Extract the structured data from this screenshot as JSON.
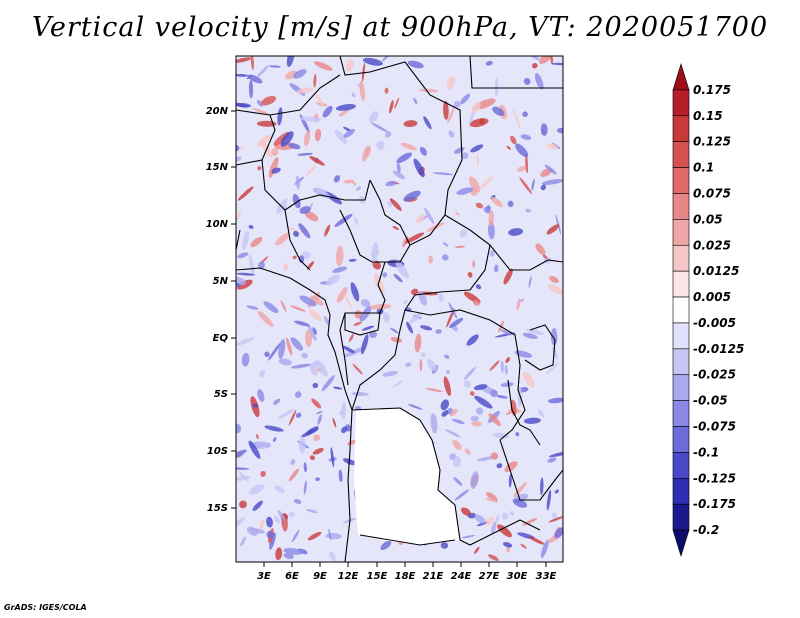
{
  "title": "Vertical velocity [m/s] at 900hPa, VT: 2020051700",
  "credit": "GrADS: IGES/COLA",
  "map": {
    "lat_labels": [
      "20N",
      "15N",
      "10N",
      "5N",
      "EQ",
      "5S",
      "10S",
      "15S"
    ],
    "lon_labels": [
      "3E",
      "6E",
      "9E",
      "12E",
      "15E",
      "18E",
      "21E",
      "24E",
      "27E",
      "30E",
      "33E"
    ]
  },
  "colorbar": {
    "labels": [
      "0.175",
      "0.15",
      "0.125",
      "0.1",
      "0.075",
      "0.05",
      "0.025",
      "0.0125",
      "0.005",
      "-0.005",
      "-0.0125",
      "-0.025",
      "-0.05",
      "-0.075",
      "-0.1",
      "-0.125",
      "-0.175",
      "-0.2"
    ],
    "colors": [
      "#9e0f1a",
      "#b51d2a",
      "#c83a3a",
      "#d55252",
      "#e06a6a",
      "#e88787",
      "#f0a6a6",
      "#f7c7c7",
      "#fbe5e5",
      "#ffffff",
      "#e1e1fb",
      "#c6c6f6",
      "#a9a9ef",
      "#8a8ae6",
      "#6b6bd9",
      "#4a4ac8",
      "#2e2eb3",
      "#1a1a8c",
      "#0c0c6b"
    ]
  }
}
